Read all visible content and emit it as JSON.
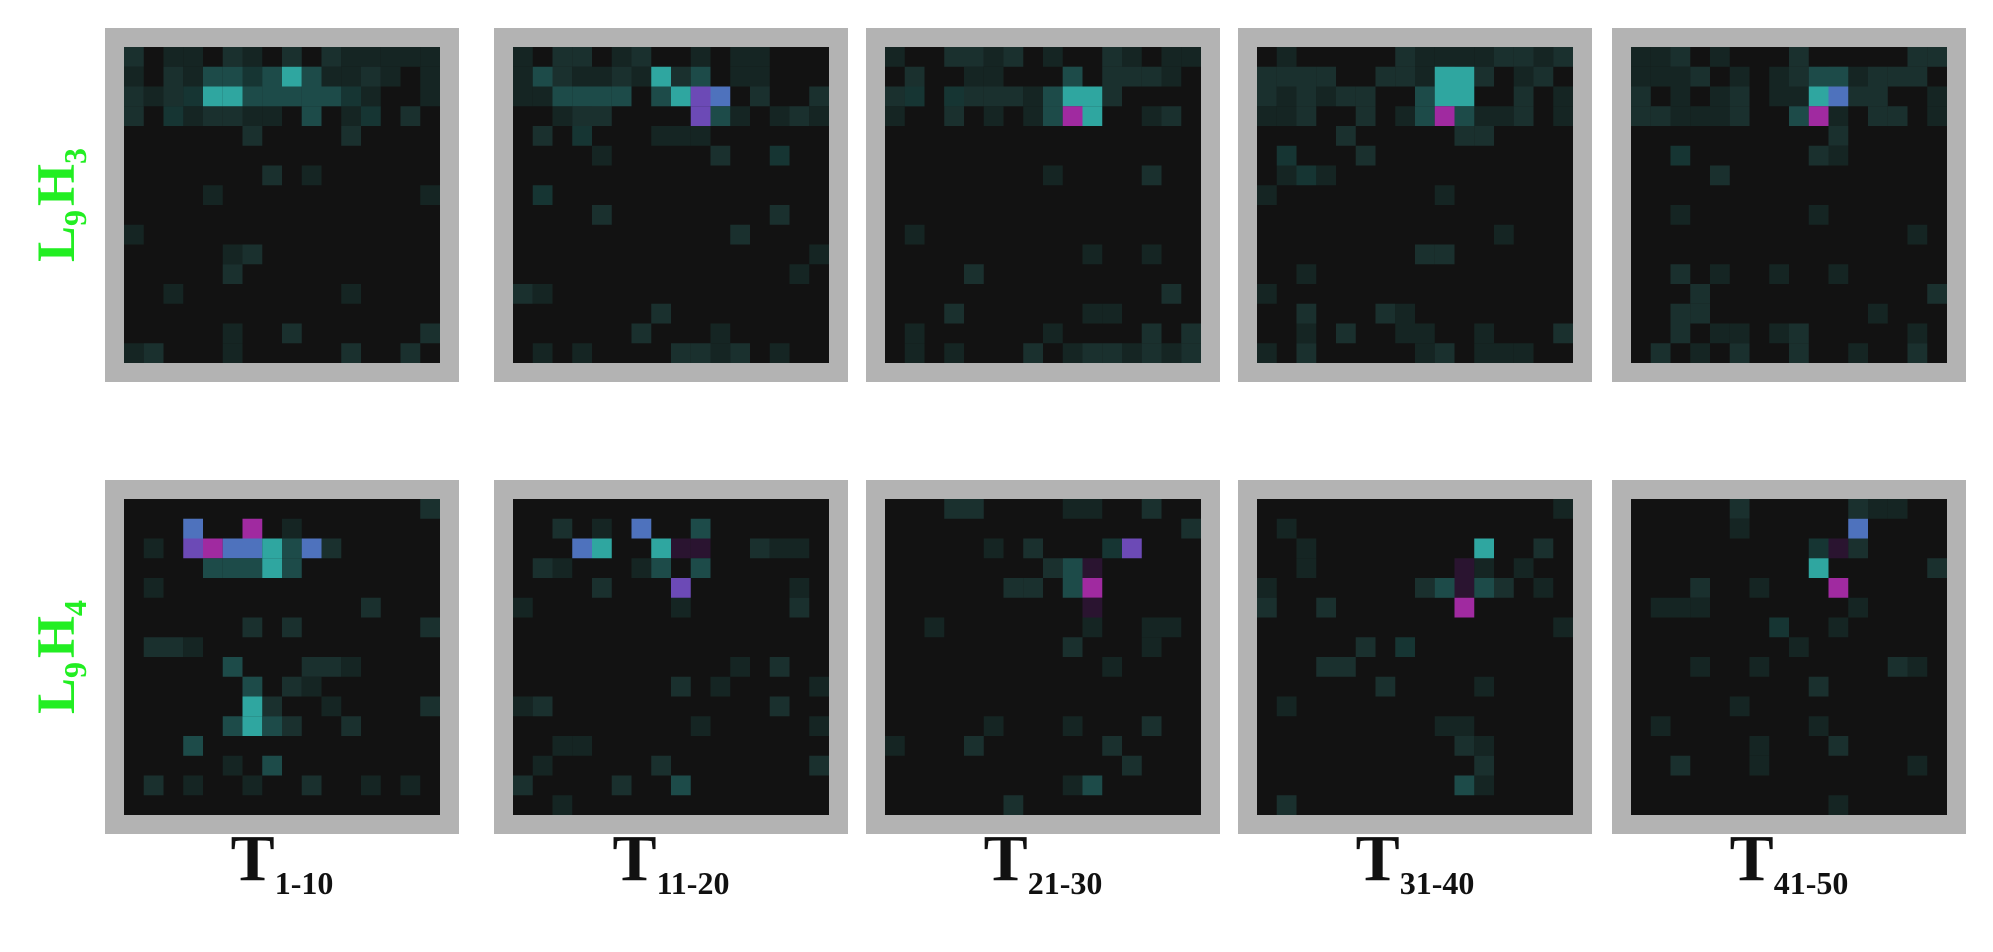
{
  "rows": [
    {
      "layer": "L",
      "layer_sub": "9",
      "head": "H",
      "head_sub": "3"
    },
    {
      "layer": "L",
      "layer_sub": "9",
      "head": "H",
      "head_sub": "4"
    }
  ],
  "columns": [
    {
      "main": "T",
      "sub": "1-10"
    },
    {
      "main": "T",
      "sub": "11-20"
    },
    {
      "main": "T",
      "sub": "21-30"
    },
    {
      "main": "T",
      "sub": "31-40"
    },
    {
      "main": "T",
      "sub": "41-50"
    }
  ]
}
